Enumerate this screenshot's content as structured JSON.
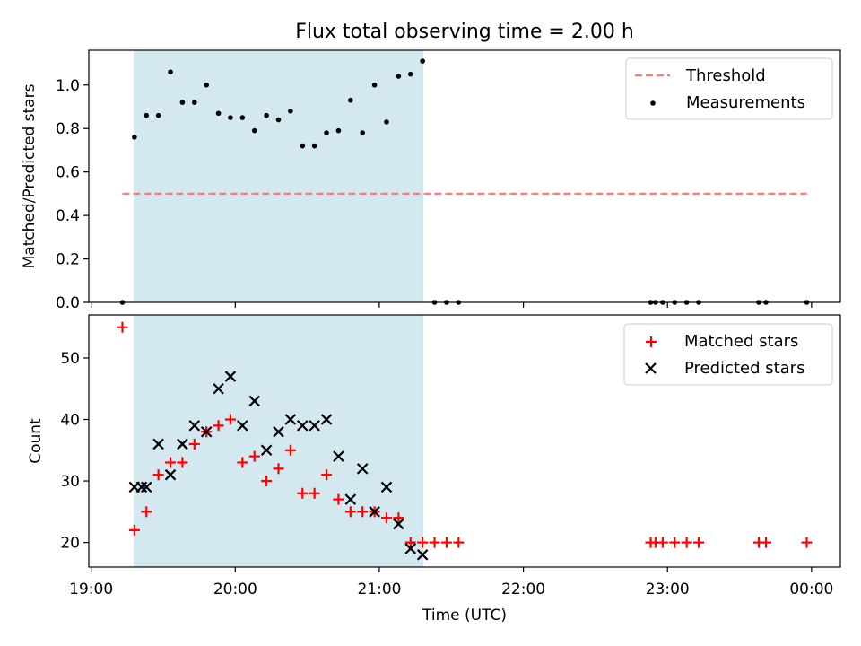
{
  "figure": {
    "title": "Flux total observing time = 2.00 h",
    "xlabel": "Time (UTC)",
    "x_tick_labels": [
      "19:00",
      "20:00",
      "21:00",
      "22:00",
      "23:00",
      "00:00"
    ]
  },
  "colors": {
    "shade": "#d3e9ef",
    "threshold": "#ff7b7b",
    "matched": "#ff0000",
    "predicted": "#000000",
    "measurement": "#000000"
  },
  "chart_data": [
    {
      "type": "scatter",
      "panel": "top",
      "ylabel": "Matched/Predicted stars",
      "xlim": [
        "18:59",
        "00:12"
      ],
      "ylim": [
        0,
        1.16
      ],
      "yticks": [
        0.0,
        0.2,
        0.4,
        0.6,
        0.8,
        1.0
      ],
      "ytick_labels": [
        "0.0",
        "0.2",
        "0.4",
        "0.6",
        "0.8",
        "1.0"
      ],
      "shaded_span": [
        "19:18",
        "21:18"
      ],
      "legend_position": "top-right",
      "threshold": {
        "name": "Threshold",
        "y": 0.5,
        "x_range": [
          "19:13",
          "23:58"
        ],
        "style": "dashed"
      },
      "series": [
        {
          "name": "Measurements",
          "x": [
            "19:13",
            "19:18",
            "19:23",
            "19:28",
            "19:33",
            "19:38",
            "19:43",
            "19:48",
            "19:53",
            "19:58",
            "20:03",
            "20:08",
            "20:13",
            "20:18",
            "20:23",
            "20:28",
            "20:33",
            "20:38",
            "20:43",
            "20:48",
            "20:53",
            "20:58",
            "21:03",
            "21:08",
            "21:13",
            "21:18",
            "21:23",
            "21:28",
            "21:33",
            "22:53",
            "22:55",
            "22:58",
            "23:03",
            "23:08",
            "23:13",
            "23:38",
            "23:41",
            "23:58"
          ],
          "y": [
            0,
            0.76,
            0.86,
            0.86,
            1.06,
            0.92,
            0.92,
            1.0,
            0.87,
            0.85,
            0.85,
            0.79,
            0.86,
            0.84,
            0.88,
            0.72,
            0.72,
            0.78,
            0.79,
            0.93,
            0.78,
            1.0,
            0.83,
            1.04,
            1.05,
            1.11,
            0,
            0,
            0,
            0,
            0,
            0,
            0,
            0,
            0,
            0,
            0,
            0
          ]
        }
      ]
    },
    {
      "type": "scatter",
      "panel": "bottom",
      "ylabel": "Count",
      "xlim": [
        "18:59",
        "00:12"
      ],
      "ylim": [
        16,
        57
      ],
      "yticks": [
        20,
        30,
        40,
        50
      ],
      "ytick_labels": [
        "20",
        "30",
        "40",
        "50"
      ],
      "shaded_span": [
        "19:18",
        "21:18"
      ],
      "legend_position": "top-right",
      "series": [
        {
          "name": "Matched stars",
          "marker": "plus",
          "x": [
            "19:13",
            "19:18",
            "19:23",
            "19:28",
            "19:33",
            "19:38",
            "19:43",
            "19:48",
            "19:53",
            "19:58",
            "20:03",
            "20:08",
            "20:13",
            "20:18",
            "20:23",
            "20:28",
            "20:33",
            "20:38",
            "20:43",
            "20:48",
            "20:53",
            "20:58",
            "21:03",
            "21:08",
            "21:13",
            "21:18",
            "21:23",
            "21:28",
            "21:33",
            "22:53",
            "22:55",
            "22:58",
            "23:03",
            "23:08",
            "23:13",
            "23:38",
            "23:41",
            "23:58"
          ],
          "y": [
            55,
            22,
            25,
            31,
            33,
            33,
            36,
            38,
            39,
            40,
            33,
            34,
            30,
            32,
            35,
            28,
            28,
            31,
            27,
            25,
            25,
            25,
            24,
            24,
            20,
            20,
            20,
            20,
            20,
            20,
            20,
            20,
            20,
            20,
            20,
            20,
            20,
            20
          ]
        },
        {
          "name": "Predicted stars",
          "marker": "x",
          "x": [
            "19:18",
            "19:21",
            "19:23",
            "19:28",
            "19:33",
            "19:38",
            "19:43",
            "19:48",
            "19:53",
            "19:58",
            "20:03",
            "20:08",
            "20:13",
            "20:18",
            "20:23",
            "20:28",
            "20:33",
            "20:38",
            "20:43",
            "20:48",
            "20:53",
            "20:58",
            "21:03",
            "21:08",
            "21:13",
            "21:18"
          ],
          "y": [
            29,
            29,
            29,
            36,
            31,
            36,
            39,
            38,
            45,
            47,
            39,
            43,
            35,
            38,
            40,
            39,
            39,
            40,
            34,
            27,
            32,
            25,
            29,
            23,
            19,
            18
          ]
        }
      ]
    }
  ]
}
